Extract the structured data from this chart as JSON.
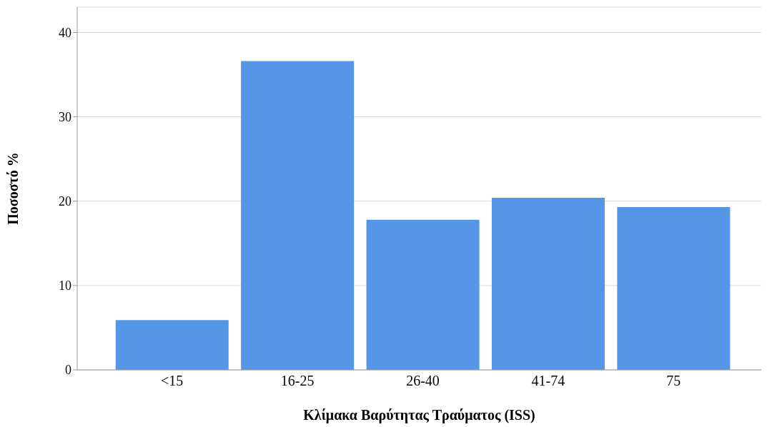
{
  "chart_data": {
    "type": "bar",
    "xlabel": "Κλίμακα Βαρύτητας Τραύματος (ISS)",
    "ylabel": "Ποσοστό %",
    "categories": [
      "<15",
      "16-25",
      "26-40",
      "41-74",
      "75"
    ],
    "values": [
      5.9,
      36.6,
      17.8,
      20.4,
      19.3
    ],
    "color": "#5596e6",
    "ylim": [
      0,
      43
    ],
    "yticks": [
      0,
      10,
      20,
      30,
      40
    ],
    "grid": "y"
  }
}
